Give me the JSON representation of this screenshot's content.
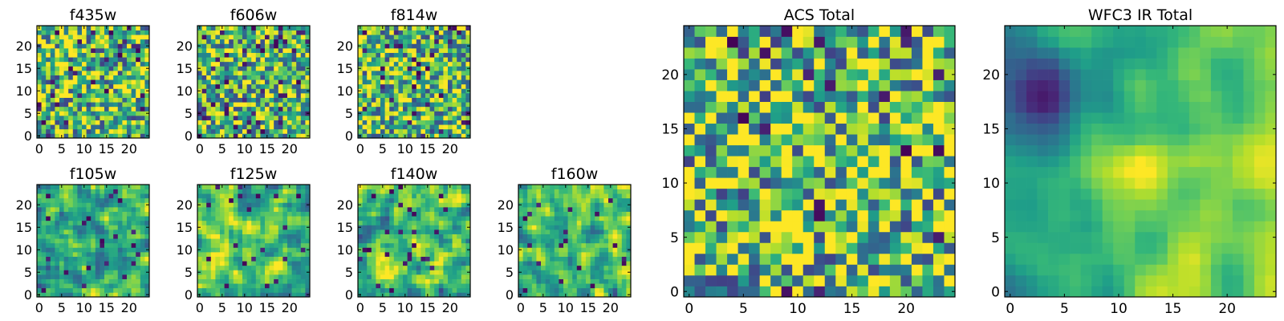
{
  "chart_data": [
    {
      "type": "heatmap",
      "title": "f435w",
      "grid_size": 25,
      "colormap": "viridis",
      "xticks": [
        "0",
        "5",
        "10",
        "15",
        "20"
      ],
      "yticks": [
        "0",
        "5",
        "10",
        "15",
        "20"
      ],
      "xlim": [
        -0.5,
        24.5
      ],
      "ylim": [
        -0.5,
        24.5
      ],
      "seed": 11,
      "smooth": 0,
      "low_frac": 0.05,
      "bias": 0.15
    },
    {
      "type": "heatmap",
      "title": "f606w",
      "grid_size": 25,
      "colormap": "viridis",
      "xticks": [
        "0",
        "5",
        "10",
        "15",
        "20"
      ],
      "yticks": [
        "0",
        "5",
        "10",
        "15",
        "20"
      ],
      "xlim": [
        -0.5,
        24.5
      ],
      "ylim": [
        -0.5,
        24.5
      ],
      "seed": 23,
      "smooth": 0,
      "low_frac": 0.07,
      "bias": 0.1
    },
    {
      "type": "heatmap",
      "title": "f814w",
      "grid_size": 25,
      "colormap": "viridis",
      "xticks": [
        "0",
        "5",
        "10",
        "15",
        "20"
      ],
      "yticks": [
        "0",
        "5",
        "10",
        "15",
        "20"
      ],
      "xlim": [
        -0.5,
        24.5
      ],
      "ylim": [
        -0.5,
        24.5
      ],
      "seed": 37,
      "smooth": 0,
      "low_frac": 0.06,
      "bias": 0.1
    },
    {
      "type": "heatmap",
      "title": "f105w",
      "grid_size": 25,
      "colormap": "viridis",
      "xticks": [
        "0",
        "5",
        "10",
        "15",
        "20"
      ],
      "yticks": [
        "0",
        "5",
        "10",
        "15",
        "20"
      ],
      "xlim": [
        -0.5,
        24.5
      ],
      "ylim": [
        -0.5,
        24.5
      ],
      "seed": 41,
      "smooth": 1,
      "low_frac": 0.04,
      "bias": 0.05
    },
    {
      "type": "heatmap",
      "title": "f125w",
      "grid_size": 25,
      "colormap": "viridis",
      "xticks": [
        "0",
        "5",
        "10",
        "15",
        "20"
      ],
      "yticks": [
        "0",
        "5",
        "10",
        "15",
        "20"
      ],
      "xlim": [
        -0.5,
        24.5
      ],
      "ylim": [
        -0.5,
        24.5
      ],
      "seed": 53,
      "smooth": 1,
      "low_frac": 0.04,
      "bias": 0.1
    },
    {
      "type": "heatmap",
      "title": "f140w",
      "grid_size": 25,
      "colormap": "viridis",
      "xticks": [
        "0",
        "5",
        "10",
        "15",
        "20"
      ],
      "yticks": [
        "0",
        "5",
        "10",
        "15",
        "20"
      ],
      "xlim": [
        -0.5,
        24.5
      ],
      "ylim": [
        -0.5,
        24.5
      ],
      "seed": 67,
      "smooth": 1,
      "low_frac": 0.03,
      "bias": 0.1
    },
    {
      "type": "heatmap",
      "title": "f160w",
      "grid_size": 25,
      "colormap": "viridis",
      "xticks": [
        "0",
        "5",
        "10",
        "15",
        "20"
      ],
      "yticks": [
        "0",
        "5",
        "10",
        "15",
        "20"
      ],
      "xlim": [
        -0.5,
        24.5
      ],
      "ylim": [
        -0.5,
        24.5
      ],
      "seed": 79,
      "smooth": 1,
      "low_frac": 0.04,
      "bias": 0.05
    },
    {
      "type": "heatmap",
      "title": "ACS Total",
      "grid_size": 25,
      "colormap": "viridis",
      "xticks": [
        "0",
        "5",
        "10",
        "15",
        "20"
      ],
      "yticks": [
        "0",
        "5",
        "10",
        "15",
        "20"
      ],
      "xlim": [
        -0.5,
        24.5
      ],
      "ylim": [
        -0.5,
        24.5
      ],
      "seed": 97,
      "smooth": 0,
      "low_frac": 0.035,
      "bias": 0.2
    },
    {
      "type": "heatmap",
      "title": "WFC3 IR Total",
      "grid_size": 25,
      "colormap": "viridis",
      "xticks": [
        "0",
        "5",
        "10",
        "15",
        "20"
      ],
      "yticks": [
        "0",
        "5",
        "10",
        "15",
        "20"
      ],
      "xlim": [
        -0.5,
        24.5
      ],
      "ylim": [
        -0.5,
        24.5
      ],
      "seed": 131,
      "smooth": 2,
      "low_frac": 0.0,
      "bias": 0.0
    }
  ]
}
